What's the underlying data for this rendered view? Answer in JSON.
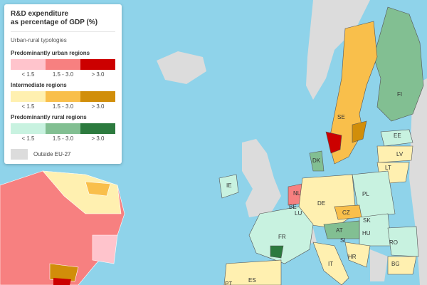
{
  "legend": {
    "title_line1": "R&D expenditure",
    "title_line2": "as percentage of GDP (%)",
    "subtitle": "Urban-rural typologies",
    "groups": [
      {
        "label": "Predominantly urban regions",
        "colors": [
          "#ffc4cc",
          "#f78080",
          "#cc0000"
        ]
      },
      {
        "label": "Intermediate regions",
        "colors": [
          "#fff0b0",
          "#f9bf4b",
          "#d18e0a"
        ]
      },
      {
        "label": "Predominantly rural regions",
        "colors": [
          "#c8f2e0",
          "#82bf92",
          "#2c7a3e"
        ]
      }
    ],
    "classes": [
      "< 1.5",
      "1.5 - 3.0",
      "> 3.0"
    ],
    "outside_label": "Outside EU-27",
    "outside_color": "#dcdcdc"
  },
  "map": {
    "sea_color": "#8fd3ea",
    "countries": [
      "FI",
      "SE",
      "EE",
      "LV",
      "LT",
      "DK",
      "IE",
      "NL",
      "BE",
      "LU",
      "DE",
      "PL",
      "CZ",
      "SK",
      "AT",
      "HU",
      "SI",
      "FR",
      "HR",
      "RO",
      "BG",
      "IT",
      "ES",
      "PT"
    ]
  }
}
